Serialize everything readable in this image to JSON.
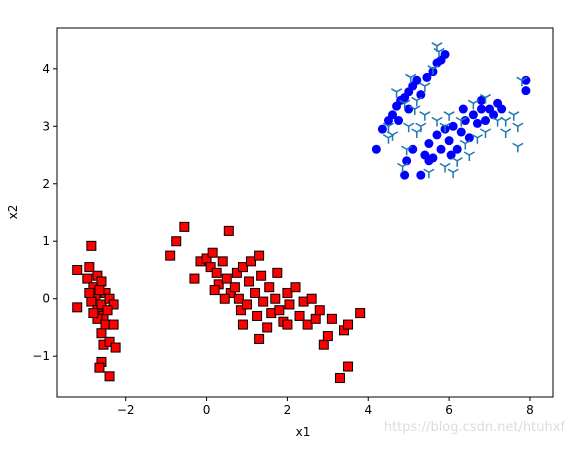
{
  "chart_data": {
    "type": "scatter",
    "xlabel": "x1",
    "ylabel": "x2",
    "xlim": [
      -3.7,
      8.57
    ],
    "ylim": [
      -1.71,
      4.71
    ],
    "xticks": [
      {
        "value": -2,
        "label": "−2"
      },
      0,
      2,
      4,
      6,
      8
    ],
    "yticks": [
      {
        "value": -1,
        "label": "−1"
      },
      0,
      1,
      2,
      3,
      4
    ],
    "watermark": "https://blog.csdn.net/htuhxf",
    "series": [
      {
        "marker": "square",
        "color": "#ff0000",
        "edgecolor": "#000000",
        "x": [
          -3.2,
          -3.2,
          -2.85,
          -2.9,
          -2.95,
          -2.8,
          -2.7,
          -2.6,
          -2.75,
          -2.85,
          -2.7,
          -2.6,
          -2.5,
          -2.4,
          -2.3,
          -2.55,
          -2.7,
          -2.5,
          -2.3,
          -2.6,
          -2.55,
          -2.4,
          -2.25,
          -2.6,
          -2.65,
          -2.4,
          -2.9,
          -2.45,
          -2.65,
          -2.8,
          -0.9,
          -0.75,
          -0.55,
          -0.3,
          -0.15,
          0.0,
          0.1,
          0.15,
          0.25,
          0.3,
          0.4,
          0.5,
          0.55,
          0.6,
          0.7,
          0.75,
          0.8,
          0.85,
          0.9,
          1.0,
          1.05,
          1.1,
          1.2,
          1.25,
          1.3,
          1.35,
          1.4,
          1.5,
          1.55,
          1.6,
          1.7,
          1.75,
          1.8,
          1.9,
          2.0,
          2.05,
          2.2,
          2.3,
          2.4,
          2.5,
          2.6,
          2.7,
          2.8,
          2.9,
          3.0,
          3.1,
          3.3,
          3.4,
          3.5,
          3.5,
          3.8,
          0.9,
          1.3,
          0.2,
          0.45,
          2.0
        ],
        "y": [
          0.5,
          -0.15,
          0.92,
          0.55,
          0.35,
          0.2,
          0.4,
          0.3,
          0.05,
          -0.05,
          -0.2,
          -0.1,
          0.1,
          0.0,
          -0.1,
          -0.3,
          -0.35,
          -0.45,
          -0.45,
          -0.6,
          -0.8,
          -0.75,
          -0.85,
          -1.1,
          -1.2,
          -1.35,
          0.1,
          -0.2,
          0.15,
          -0.25,
          0.75,
          1.0,
          1.25,
          0.35,
          0.65,
          0.7,
          0.55,
          0.8,
          0.45,
          0.25,
          0.65,
          0.35,
          1.18,
          0.1,
          0.2,
          0.45,
          0.0,
          -0.2,
          0.55,
          -0.1,
          0.3,
          0.65,
          0.1,
          -0.3,
          0.75,
          0.4,
          -0.05,
          -0.5,
          0.2,
          -0.25,
          0.0,
          0.45,
          -0.2,
          -0.4,
          0.1,
          -0.1,
          0.2,
          -0.3,
          -0.05,
          -0.45,
          0.0,
          -0.35,
          -0.2,
          -0.8,
          -0.65,
          -0.35,
          -1.38,
          -0.55,
          -1.18,
          -0.45,
          -0.25,
          -0.45,
          -0.7,
          0.15,
          0.0,
          -0.45
        ]
      },
      {
        "marker": "circle",
        "color": "#0000ff",
        "x": [
          4.2,
          4.35,
          4.5,
          4.6,
          4.7,
          4.8,
          4.9,
          5.0,
          5.1,
          5.2,
          5.3,
          5.45,
          5.6,
          5.7,
          5.8,
          5.9,
          5.0,
          4.75,
          4.9,
          4.95,
          5.3,
          5.1,
          5.4,
          5.5,
          5.6,
          5.7,
          5.8,
          5.9,
          6.0,
          6.1,
          6.2,
          6.3,
          6.4,
          6.5,
          6.6,
          6.7,
          6.8,
          6.9,
          7.0,
          7.1,
          7.2,
          7.3,
          7.9,
          7.9,
          6.8,
          6.05,
          5.5,
          6.35
        ],
        "y": [
          2.6,
          2.95,
          3.1,
          3.2,
          3.35,
          3.45,
          3.5,
          3.6,
          3.7,
          3.8,
          3.55,
          3.85,
          3.95,
          4.1,
          4.15,
          4.25,
          3.3,
          3.1,
          2.15,
          2.4,
          2.15,
          2.6,
          2.5,
          2.7,
          2.45,
          2.85,
          2.6,
          2.95,
          2.75,
          3.0,
          2.6,
          2.9,
          3.1,
          2.8,
          3.2,
          3.05,
          3.3,
          3.1,
          3.3,
          3.2,
          3.4,
          3.3,
          3.8,
          3.62,
          3.45,
          2.5,
          2.4,
          3.3
        ]
      },
      {
        "marker": "tri_down",
        "color": "#1f77b4",
        "x": [
          4.5,
          4.6,
          4.9,
          5.0,
          5.2,
          5.4,
          5.6,
          5.75,
          5.7,
          4.85,
          4.95,
          5.2,
          5.5,
          5.9,
          6.1,
          6.2,
          6.5,
          6.4,
          6.9,
          7.2,
          7.4,
          7.6,
          7.7,
          7.7,
          7.4,
          7.8,
          6.9,
          6.6,
          6.3,
          6.0,
          5.7,
          5.4,
          5.15,
          5.05,
          4.7,
          4.5,
          5.9,
          6.7,
          5.3
        ],
        "y": [
          3.0,
          2.85,
          3.4,
          3.0,
          3.45,
          3.7,
          4.0,
          4.3,
          4.4,
          2.3,
          2.6,
          2.9,
          2.2,
          2.3,
          2.2,
          2.4,
          2.5,
          2.7,
          2.9,
          3.1,
          3.1,
          3.2,
          3.0,
          2.65,
          2.9,
          3.8,
          3.5,
          3.4,
          3.1,
          3.2,
          3.1,
          3.2,
          3.3,
          3.85,
          3.6,
          2.8,
          3.0,
          2.8,
          3.0
        ]
      }
    ]
  }
}
